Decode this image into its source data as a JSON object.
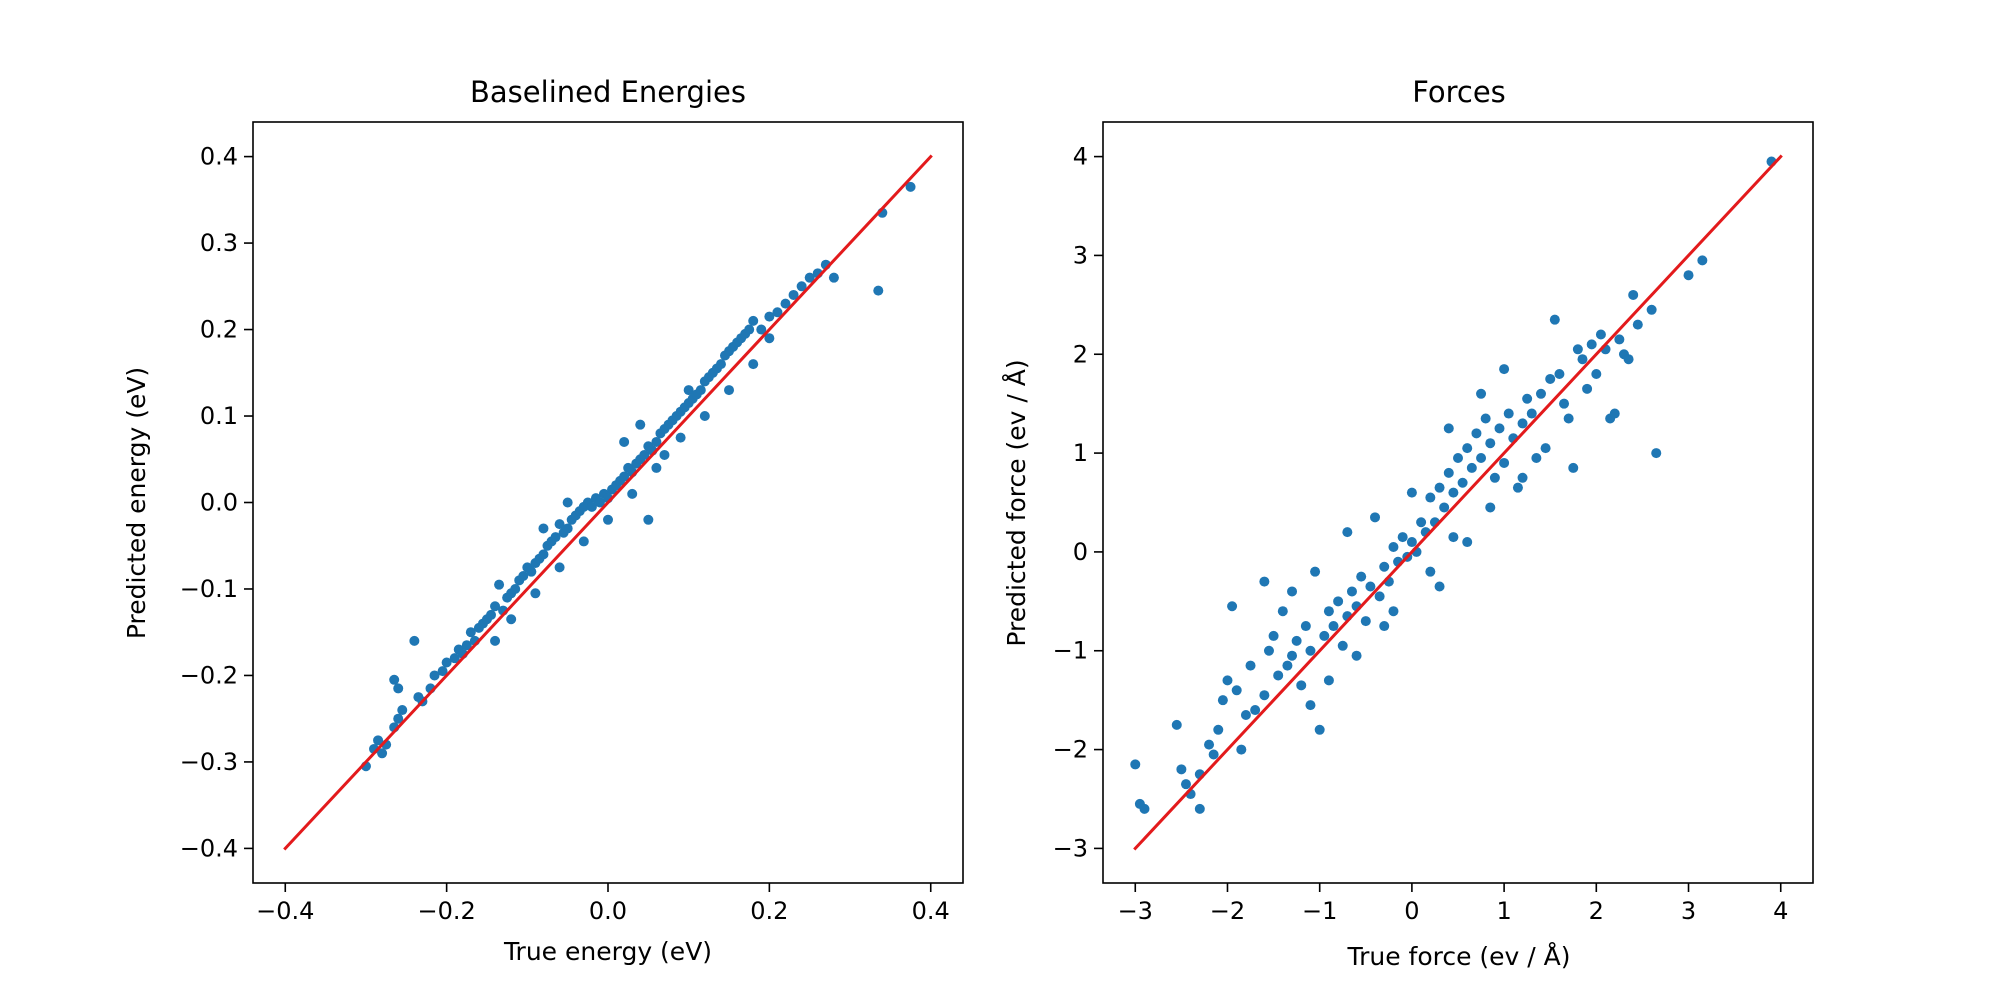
{
  "figure": {
    "background": "#ffffff",
    "point_color": "#1f77b4",
    "line_color": "#e31a1c"
  },
  "chart_data": [
    {
      "type": "scatter",
      "title": "Baselined Energies",
      "xlabel": "True energy (eV)",
      "ylabel": "Predicted energy (eV)",
      "xlim": [
        -0.44,
        0.44
      ],
      "ylim": [
        -0.44,
        0.44
      ],
      "xticks": [
        -0.4,
        -0.2,
        0.0,
        0.2,
        0.4
      ],
      "xtick_labels": [
        "−0.4",
        "−0.2",
        "0.0",
        "0.2",
        "0.4"
      ],
      "yticks": [
        -0.4,
        -0.3,
        -0.2,
        -0.1,
        0.0,
        0.1,
        0.2,
        0.3,
        0.4
      ],
      "ytick_labels": [
        "−0.4",
        "−0.3",
        "−0.2",
        "−0.1",
        "0.0",
        "0.1",
        "0.2",
        "0.3",
        "0.4"
      ],
      "grid": false,
      "reference_line": {
        "x": [
          -0.4,
          0.4
        ],
        "y": [
          -0.4,
          0.4
        ],
        "color": "#e31a1c"
      },
      "series": [
        {
          "points": [
            [
              -0.3,
              -0.305
            ],
            [
              -0.29,
              -0.285
            ],
            [
              -0.285,
              -0.275
            ],
            [
              -0.28,
              -0.29
            ],
            [
              -0.275,
              -0.28
            ],
            [
              -0.265,
              -0.26
            ],
            [
              -0.26,
              -0.25
            ],
            [
              -0.255,
              -0.24
            ],
            [
              -0.265,
              -0.205
            ],
            [
              -0.26,
              -0.215
            ],
            [
              -0.24,
              -0.16
            ],
            [
              -0.235,
              -0.225
            ],
            [
              -0.23,
              -0.23
            ],
            [
              -0.22,
              -0.215
            ],
            [
              -0.215,
              -0.2
            ],
            [
              -0.205,
              -0.195
            ],
            [
              -0.2,
              -0.185
            ],
            [
              -0.19,
              -0.18
            ],
            [
              -0.185,
              -0.17
            ],
            [
              -0.18,
              -0.175
            ],
            [
              -0.175,
              -0.165
            ],
            [
              -0.17,
              -0.15
            ],
            [
              -0.165,
              -0.16
            ],
            [
              -0.16,
              -0.145
            ],
            [
              -0.155,
              -0.14
            ],
            [
              -0.15,
              -0.135
            ],
            [
              -0.145,
              -0.13
            ],
            [
              -0.14,
              -0.12
            ],
            [
              -0.135,
              -0.095
            ],
            [
              -0.13,
              -0.125
            ],
            [
              -0.125,
              -0.11
            ],
            [
              -0.12,
              -0.105
            ],
            [
              -0.115,
              -0.1
            ],
            [
              -0.11,
              -0.09
            ],
            [
              -0.105,
              -0.085
            ],
            [
              -0.1,
              -0.075
            ],
            [
              -0.095,
              -0.08
            ],
            [
              -0.09,
              -0.07
            ],
            [
              -0.085,
              -0.065
            ],
            [
              -0.08,
              -0.06
            ],
            [
              -0.075,
              -0.05
            ],
            [
              -0.07,
              -0.045
            ],
            [
              -0.065,
              -0.04
            ],
            [
              -0.06,
              -0.025
            ],
            [
              -0.055,
              -0.035
            ],
            [
              -0.05,
              -0.03
            ],
            [
              -0.045,
              -0.02
            ],
            [
              -0.04,
              -0.015
            ],
            [
              -0.035,
              -0.01
            ],
            [
              -0.03,
              -0.005
            ],
            [
              -0.025,
              0.0
            ],
            [
              -0.02,
              -0.005
            ],
            [
              -0.015,
              0.005
            ],
            [
              -0.01,
              0.0
            ],
            [
              -0.005,
              0.01
            ],
            [
              0.0,
              0.005
            ],
            [
              0.005,
              0.015
            ],
            [
              0.01,
              0.02
            ],
            [
              0.015,
              0.025
            ],
            [
              0.02,
              0.03
            ],
            [
              0.025,
              0.04
            ],
            [
              0.03,
              0.035
            ],
            [
              0.035,
              0.045
            ],
            [
              0.04,
              0.05
            ],
            [
              0.045,
              0.055
            ],
            [
              0.05,
              0.065
            ],
            [
              0.055,
              0.06
            ],
            [
              0.06,
              0.07
            ],
            [
              0.065,
              0.08
            ],
            [
              0.07,
              0.085
            ],
            [
              0.075,
              0.09
            ],
            [
              0.08,
              0.095
            ],
            [
              0.085,
              0.1
            ],
            [
              0.09,
              0.105
            ],
            [
              0.095,
              0.11
            ],
            [
              0.1,
              0.115
            ],
            [
              0.105,
              0.12
            ],
            [
              0.11,
              0.125
            ],
            [
              0.115,
              0.13
            ],
            [
              0.12,
              0.14
            ],
            [
              0.125,
              0.145
            ],
            [
              0.13,
              0.15
            ],
            [
              0.135,
              0.155
            ],
            [
              0.14,
              0.16
            ],
            [
              0.145,
              0.17
            ],
            [
              0.15,
              0.175
            ],
            [
              0.155,
              0.18
            ],
            [
              0.16,
              0.185
            ],
            [
              0.165,
              0.19
            ],
            [
              0.17,
              0.195
            ],
            [
              0.175,
              0.2
            ],
            [
              0.18,
              0.21
            ],
            [
              0.19,
              0.2
            ],
            [
              0.2,
              0.215
            ],
            [
              0.21,
              0.22
            ],
            [
              0.22,
              0.23
            ],
            [
              0.23,
              0.24
            ],
            [
              0.24,
              0.25
            ],
            [
              0.25,
              0.26
            ],
            [
              0.26,
              0.265
            ],
            [
              0.27,
              0.275
            ],
            [
              0.28,
              0.26
            ],
            [
              0.335,
              0.245
            ],
            [
              0.34,
              0.335
            ],
            [
              0.375,
              0.365
            ],
            [
              -0.12,
              -0.135
            ],
            [
              -0.09,
              -0.105
            ],
            [
              -0.06,
              -0.075
            ],
            [
              -0.03,
              -0.045
            ],
            [
              0.0,
              -0.02
            ],
            [
              0.03,
              0.01
            ],
            [
              0.06,
              0.04
            ],
            [
              0.05,
              -0.02
            ],
            [
              0.09,
              0.075
            ],
            [
              0.12,
              0.1
            ],
            [
              0.15,
              0.13
            ],
            [
              0.18,
              0.16
            ],
            [
              0.2,
              0.19
            ],
            [
              -0.08,
              -0.03
            ],
            [
              -0.05,
              0.0
            ],
            [
              0.02,
              0.07
            ],
            [
              0.04,
              0.09
            ],
            [
              -0.14,
              -0.16
            ],
            [
              0.1,
              0.13
            ],
            [
              0.07,
              0.055
            ]
          ]
        }
      ]
    },
    {
      "type": "scatter",
      "title": "Forces",
      "xlabel": "True force (ev / Å)",
      "ylabel": "Predicted force (ev / Å)",
      "xlim": [
        -3.35,
        4.35
      ],
      "ylim": [
        -3.35,
        4.35
      ],
      "xticks": [
        -3,
        -2,
        -1,
        0,
        1,
        2,
        3,
        4
      ],
      "xtick_labels": [
        "−3",
        "−2",
        "−1",
        "0",
        "1",
        "2",
        "3",
        "4"
      ],
      "yticks": [
        -3,
        -2,
        -1,
        0,
        1,
        2,
        3,
        4
      ],
      "ytick_labels": [
        "−3",
        "−2",
        "−1",
        "0",
        "1",
        "2",
        "3",
        "4"
      ],
      "grid": false,
      "reference_line": {
        "x": [
          -3,
          4
        ],
        "y": [
          -3,
          4
        ],
        "color": "#e31a1c"
      },
      "series": [
        {
          "points": [
            [
              -3.0,
              -2.15
            ],
            [
              -2.95,
              -2.55
            ],
            [
              -2.9,
              -2.6
            ],
            [
              -2.55,
              -1.75
            ],
            [
              -2.45,
              -2.35
            ],
            [
              -2.4,
              -2.45
            ],
            [
              -2.3,
              -2.6
            ],
            [
              -2.3,
              -2.25
            ],
            [
              -2.2,
              -1.95
            ],
            [
              -2.15,
              -2.05
            ],
            [
              -2.1,
              -1.8
            ],
            [
              -2.05,
              -1.5
            ],
            [
              -2.0,
              -1.3
            ],
            [
              -1.95,
              -0.55
            ],
            [
              -1.9,
              -1.4
            ],
            [
              -1.85,
              -2.0
            ],
            [
              -1.8,
              -1.65
            ],
            [
              -1.75,
              -1.15
            ],
            [
              -1.7,
              -1.6
            ],
            [
              -1.6,
              -1.45
            ],
            [
              -1.55,
              -1.0
            ],
            [
              -1.5,
              -0.85
            ],
            [
              -1.45,
              -1.25
            ],
            [
              -1.4,
              -0.6
            ],
            [
              -1.35,
              -1.15
            ],
            [
              -1.3,
              -1.05
            ],
            [
              -1.25,
              -0.9
            ],
            [
              -1.2,
              -1.35
            ],
            [
              -1.15,
              -0.75
            ],
            [
              -1.1,
              -1.0
            ],
            [
              -1.05,
              -0.2
            ],
            [
              -1.0,
              -1.8
            ],
            [
              -0.95,
              -0.85
            ],
            [
              -0.9,
              -0.6
            ],
            [
              -0.85,
              -0.75
            ],
            [
              -0.8,
              -0.5
            ],
            [
              -0.75,
              -0.95
            ],
            [
              -0.7,
              -0.65
            ],
            [
              -0.65,
              -0.4
            ],
            [
              -0.6,
              -0.55
            ],
            [
              -0.55,
              -0.25
            ],
            [
              -0.5,
              -0.7
            ],
            [
              -0.45,
              -0.35
            ],
            [
              -0.4,
              0.35
            ],
            [
              -0.35,
              -0.45
            ],
            [
              -0.3,
              -0.15
            ],
            [
              -0.25,
              -0.3
            ],
            [
              -0.2,
              0.05
            ],
            [
              -0.15,
              -0.1
            ],
            [
              -0.1,
              0.15
            ],
            [
              -0.05,
              -0.05
            ],
            [
              0.0,
              0.1
            ],
            [
              0.05,
              0.0
            ],
            [
              0.1,
              0.3
            ],
            [
              0.15,
              0.2
            ],
            [
              0.2,
              0.55
            ],
            [
              0.25,
              0.3
            ],
            [
              0.3,
              0.65
            ],
            [
              0.35,
              0.45
            ],
            [
              0.4,
              0.8
            ],
            [
              0.45,
              0.6
            ],
            [
              0.5,
              0.95
            ],
            [
              0.55,
              0.7
            ],
            [
              0.6,
              1.05
            ],
            [
              0.65,
              0.85
            ],
            [
              0.7,
              1.2
            ],
            [
              0.75,
              0.95
            ],
            [
              0.8,
              1.35
            ],
            [
              0.85,
              1.1
            ],
            [
              0.9,
              0.75
            ],
            [
              0.95,
              1.25
            ],
            [
              1.0,
              0.9
            ],
            [
              1.05,
              1.4
            ],
            [
              1.1,
              1.15
            ],
            [
              1.15,
              0.65
            ],
            [
              1.2,
              1.3
            ],
            [
              1.25,
              1.55
            ],
            [
              1.3,
              1.4
            ],
            [
              1.35,
              0.95
            ],
            [
              1.4,
              1.6
            ],
            [
              1.45,
              1.05
            ],
            [
              1.5,
              1.75
            ],
            [
              1.55,
              2.35
            ],
            [
              1.6,
              1.8
            ],
            [
              1.65,
              1.5
            ],
            [
              1.7,
              1.35
            ],
            [
              1.75,
              0.85
            ],
            [
              1.8,
              2.05
            ],
            [
              1.85,
              1.95
            ],
            [
              1.9,
              1.65
            ],
            [
              1.95,
              2.1
            ],
            [
              2.0,
              1.8
            ],
            [
              2.05,
              2.2
            ],
            [
              2.1,
              2.05
            ],
            [
              2.15,
              1.35
            ],
            [
              2.2,
              1.4
            ],
            [
              2.25,
              2.15
            ],
            [
              2.3,
              2.0
            ],
            [
              2.35,
              1.95
            ],
            [
              2.4,
              2.6
            ],
            [
              2.45,
              2.3
            ],
            [
              2.6,
              2.45
            ],
            [
              2.65,
              1.0
            ],
            [
              3.0,
              2.8
            ],
            [
              3.15,
              2.95
            ],
            [
              3.9,
              3.95
            ],
            [
              -0.6,
              -1.05
            ],
            [
              -0.3,
              -0.75
            ],
            [
              0.3,
              -0.35
            ],
            [
              0.6,
              0.1
            ],
            [
              -0.9,
              -1.3
            ],
            [
              0.2,
              -0.2
            ],
            [
              0.85,
              0.45
            ],
            [
              1.2,
              0.75
            ],
            [
              -1.6,
              -0.3
            ],
            [
              -0.7,
              0.2
            ],
            [
              0.0,
              0.6
            ],
            [
              0.4,
              1.25
            ],
            [
              0.75,
              1.6
            ],
            [
              -0.2,
              -0.6
            ],
            [
              -1.3,
              -0.4
            ],
            [
              0.45,
              0.15
            ],
            [
              1.0,
              1.85
            ],
            [
              -2.5,
              -2.2
            ],
            [
              -1.1,
              -1.55
            ]
          ]
        }
      ]
    }
  ]
}
